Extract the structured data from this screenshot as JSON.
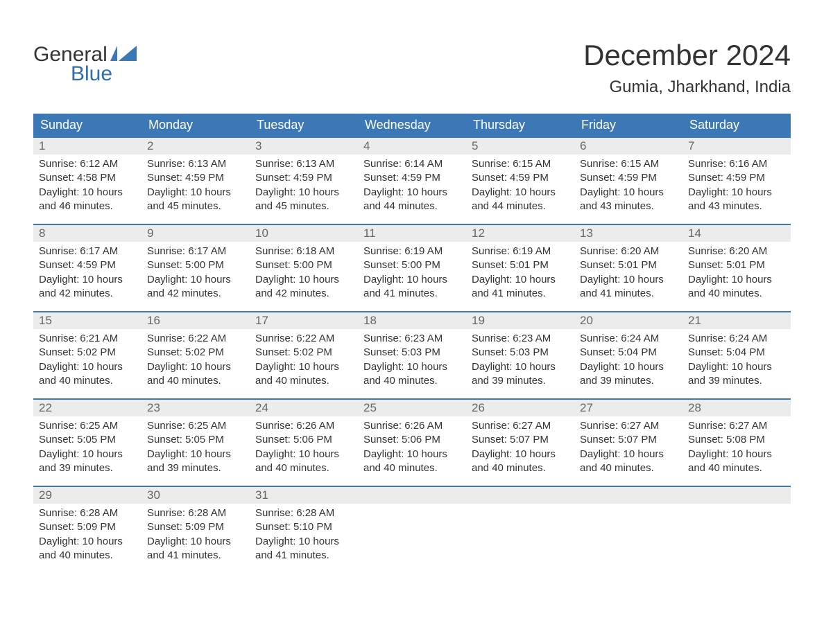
{
  "brand": {
    "word1": "General",
    "word2": "Blue",
    "word2_color": "#2f6fb0",
    "flag_color": "#3b78b5"
  },
  "header": {
    "month_title": "December 2024",
    "location": "Gumia, Jharkhand, India"
  },
  "columns": [
    "Sunday",
    "Monday",
    "Tuesday",
    "Wednesday",
    "Thursday",
    "Friday",
    "Saturday"
  ],
  "colors": {
    "header_bg": "#3b78b5",
    "header_text": "#ffffff",
    "week_border": "#3b78b5",
    "daynum_bg": "#ececec",
    "daynum_text": "#666666",
    "body_text": "#333333",
    "page_bg": "#ffffff"
  },
  "typography": {
    "title_fontsize": 42,
    "location_fontsize": 24,
    "dayhead_fontsize": 18,
    "daynum_fontsize": 17,
    "body_fontsize": 15
  },
  "weeks": [
    [
      {
        "n": "1",
        "sunrise": "Sunrise: 6:12 AM",
        "sunset": "Sunset: 4:58 PM",
        "d1": "Daylight: 10 hours",
        "d2": "and 46 minutes."
      },
      {
        "n": "2",
        "sunrise": "Sunrise: 6:13 AM",
        "sunset": "Sunset: 4:59 PM",
        "d1": "Daylight: 10 hours",
        "d2": "and 45 minutes."
      },
      {
        "n": "3",
        "sunrise": "Sunrise: 6:13 AM",
        "sunset": "Sunset: 4:59 PM",
        "d1": "Daylight: 10 hours",
        "d2": "and 45 minutes."
      },
      {
        "n": "4",
        "sunrise": "Sunrise: 6:14 AM",
        "sunset": "Sunset: 4:59 PM",
        "d1": "Daylight: 10 hours",
        "d2": "and 44 minutes."
      },
      {
        "n": "5",
        "sunrise": "Sunrise: 6:15 AM",
        "sunset": "Sunset: 4:59 PM",
        "d1": "Daylight: 10 hours",
        "d2": "and 44 minutes."
      },
      {
        "n": "6",
        "sunrise": "Sunrise: 6:15 AM",
        "sunset": "Sunset: 4:59 PM",
        "d1": "Daylight: 10 hours",
        "d2": "and 43 minutes."
      },
      {
        "n": "7",
        "sunrise": "Sunrise: 6:16 AM",
        "sunset": "Sunset: 4:59 PM",
        "d1": "Daylight: 10 hours",
        "d2": "and 43 minutes."
      }
    ],
    [
      {
        "n": "8",
        "sunrise": "Sunrise: 6:17 AM",
        "sunset": "Sunset: 4:59 PM",
        "d1": "Daylight: 10 hours",
        "d2": "and 42 minutes."
      },
      {
        "n": "9",
        "sunrise": "Sunrise: 6:17 AM",
        "sunset": "Sunset: 5:00 PM",
        "d1": "Daylight: 10 hours",
        "d2": "and 42 minutes."
      },
      {
        "n": "10",
        "sunrise": "Sunrise: 6:18 AM",
        "sunset": "Sunset: 5:00 PM",
        "d1": "Daylight: 10 hours",
        "d2": "and 42 minutes."
      },
      {
        "n": "11",
        "sunrise": "Sunrise: 6:19 AM",
        "sunset": "Sunset: 5:00 PM",
        "d1": "Daylight: 10 hours",
        "d2": "and 41 minutes."
      },
      {
        "n": "12",
        "sunrise": "Sunrise: 6:19 AM",
        "sunset": "Sunset: 5:01 PM",
        "d1": "Daylight: 10 hours",
        "d2": "and 41 minutes."
      },
      {
        "n": "13",
        "sunrise": "Sunrise: 6:20 AM",
        "sunset": "Sunset: 5:01 PM",
        "d1": "Daylight: 10 hours",
        "d2": "and 41 minutes."
      },
      {
        "n": "14",
        "sunrise": "Sunrise: 6:20 AM",
        "sunset": "Sunset: 5:01 PM",
        "d1": "Daylight: 10 hours",
        "d2": "and 40 minutes."
      }
    ],
    [
      {
        "n": "15",
        "sunrise": "Sunrise: 6:21 AM",
        "sunset": "Sunset: 5:02 PM",
        "d1": "Daylight: 10 hours",
        "d2": "and 40 minutes."
      },
      {
        "n": "16",
        "sunrise": "Sunrise: 6:22 AM",
        "sunset": "Sunset: 5:02 PM",
        "d1": "Daylight: 10 hours",
        "d2": "and 40 minutes."
      },
      {
        "n": "17",
        "sunrise": "Sunrise: 6:22 AM",
        "sunset": "Sunset: 5:02 PM",
        "d1": "Daylight: 10 hours",
        "d2": "and 40 minutes."
      },
      {
        "n": "18",
        "sunrise": "Sunrise: 6:23 AM",
        "sunset": "Sunset: 5:03 PM",
        "d1": "Daylight: 10 hours",
        "d2": "and 40 minutes."
      },
      {
        "n": "19",
        "sunrise": "Sunrise: 6:23 AM",
        "sunset": "Sunset: 5:03 PM",
        "d1": "Daylight: 10 hours",
        "d2": "and 39 minutes."
      },
      {
        "n": "20",
        "sunrise": "Sunrise: 6:24 AM",
        "sunset": "Sunset: 5:04 PM",
        "d1": "Daylight: 10 hours",
        "d2": "and 39 minutes."
      },
      {
        "n": "21",
        "sunrise": "Sunrise: 6:24 AM",
        "sunset": "Sunset: 5:04 PM",
        "d1": "Daylight: 10 hours",
        "d2": "and 39 minutes."
      }
    ],
    [
      {
        "n": "22",
        "sunrise": "Sunrise: 6:25 AM",
        "sunset": "Sunset: 5:05 PM",
        "d1": "Daylight: 10 hours",
        "d2": "and 39 minutes."
      },
      {
        "n": "23",
        "sunrise": "Sunrise: 6:25 AM",
        "sunset": "Sunset: 5:05 PM",
        "d1": "Daylight: 10 hours",
        "d2": "and 39 minutes."
      },
      {
        "n": "24",
        "sunrise": "Sunrise: 6:26 AM",
        "sunset": "Sunset: 5:06 PM",
        "d1": "Daylight: 10 hours",
        "d2": "and 40 minutes."
      },
      {
        "n": "25",
        "sunrise": "Sunrise: 6:26 AM",
        "sunset": "Sunset: 5:06 PM",
        "d1": "Daylight: 10 hours",
        "d2": "and 40 minutes."
      },
      {
        "n": "26",
        "sunrise": "Sunrise: 6:27 AM",
        "sunset": "Sunset: 5:07 PM",
        "d1": "Daylight: 10 hours",
        "d2": "and 40 minutes."
      },
      {
        "n": "27",
        "sunrise": "Sunrise: 6:27 AM",
        "sunset": "Sunset: 5:07 PM",
        "d1": "Daylight: 10 hours",
        "d2": "and 40 minutes."
      },
      {
        "n": "28",
        "sunrise": "Sunrise: 6:27 AM",
        "sunset": "Sunset: 5:08 PM",
        "d1": "Daylight: 10 hours",
        "d2": "and 40 minutes."
      }
    ],
    [
      {
        "n": "29",
        "sunrise": "Sunrise: 6:28 AM",
        "sunset": "Sunset: 5:09 PM",
        "d1": "Daylight: 10 hours",
        "d2": "and 40 minutes."
      },
      {
        "n": "30",
        "sunrise": "Sunrise: 6:28 AM",
        "sunset": "Sunset: 5:09 PM",
        "d1": "Daylight: 10 hours",
        "d2": "and 41 minutes."
      },
      {
        "n": "31",
        "sunrise": "Sunrise: 6:28 AM",
        "sunset": "Sunset: 5:10 PM",
        "d1": "Daylight: 10 hours",
        "d2": "and 41 minutes."
      },
      null,
      null,
      null,
      null
    ]
  ]
}
